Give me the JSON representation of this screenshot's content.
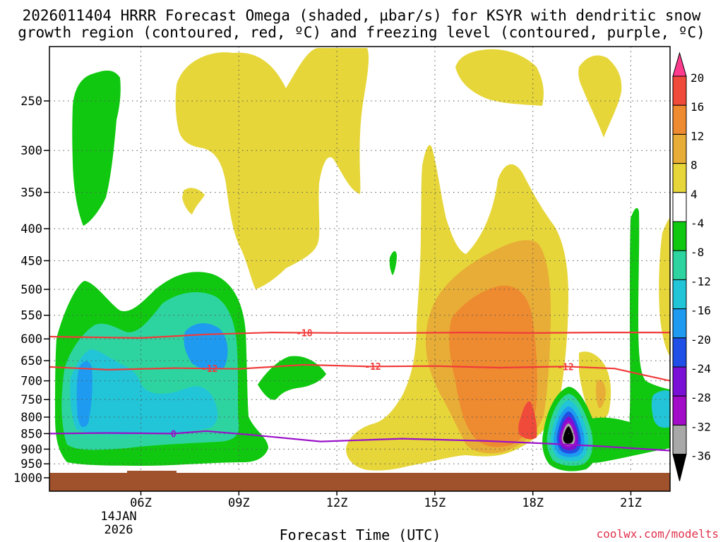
{
  "chart_data": {
    "type": "heatmap",
    "title_line1": "2026011404 HRRR Forecast Omega (shaded, µbar/s) for KSYR with dendritic snow",
    "title_line2": "growth region (contoured, red, ºC) and freezing level (contoured, purple, ºC)",
    "xlabel": "Forecast Time (UTC)",
    "date_label_day": "14JAN",
    "date_label_year": "2026",
    "credit": "coolwx.com/modelts",
    "x_range_hours": [
      3.2,
      22.2
    ],
    "x_ticks": [
      {
        "hour": 6,
        "label": "06Z"
      },
      {
        "hour": 9,
        "label": "09Z"
      },
      {
        "hour": 12,
        "label": "12Z"
      },
      {
        "hour": 15,
        "label": "15Z"
      },
      {
        "hour": 18,
        "label": "18Z"
      },
      {
        "hour": 21,
        "label": "21Z"
      }
    ],
    "y_ticks": [
      {
        "p": 250,
        "label": "250"
      },
      {
        "p": 300,
        "label": "300"
      },
      {
        "p": 350,
        "label": "350"
      },
      {
        "p": 400,
        "label": "400"
      },
      {
        "p": 450,
        "label": "450"
      },
      {
        "p": 500,
        "label": "500"
      },
      {
        "p": 550,
        "label": "550"
      },
      {
        "p": 600,
        "label": "600"
      },
      {
        "p": 650,
        "label": "650"
      },
      {
        "p": 700,
        "label": "700"
      },
      {
        "p": 750,
        "label": "750"
      },
      {
        "p": 800,
        "label": "800"
      },
      {
        "p": 850,
        "label": "850"
      },
      {
        "p": 900,
        "label": "900"
      },
      {
        "p": 950,
        "label": "950"
      },
      {
        "p": 1000,
        "label": "1000"
      }
    ],
    "colorbar": [
      {
        "label": "20",
        "color": "#ff3b8e"
      },
      {
        "label": "16",
        "color": "#f04a3a"
      },
      {
        "label": "12",
        "color": "#ee8a30"
      },
      {
        "label": "8",
        "color": "#e8ad36"
      },
      {
        "label": "4",
        "color": "#e6d63a"
      },
      {
        "label": "-4",
        "color": "#ffffff"
      },
      {
        "label": "-8",
        "color": "#10c810"
      },
      {
        "label": "-12",
        "color": "#2ed4a0"
      },
      {
        "label": "-16",
        "color": "#22c4d8"
      },
      {
        "label": "-20",
        "color": "#1e9bf0"
      },
      {
        "label": "-24",
        "color": "#1f4fe6"
      },
      {
        "label": "-28",
        "color": "#7a10d6"
      },
      {
        "label": "-32",
        "color": "#a20cc8"
      },
      {
        "label": "-36",
        "color": "#a8a8a8"
      }
    ],
    "colorbar_bottom_color": "#000000",
    "contours": [
      {
        "name": "dgz-minus18",
        "label": "-18",
        "color": "#f03a3a",
        "label_hour": 11.0,
        "points": [
          [
            3.2,
            595
          ],
          [
            6.0,
            598
          ],
          [
            8.0,
            590
          ],
          [
            10.0,
            586
          ],
          [
            12.0,
            587
          ],
          [
            14.0,
            587
          ],
          [
            16.0,
            586
          ],
          [
            18.0,
            587
          ],
          [
            20.0,
            586
          ],
          [
            22.2,
            586
          ]
        ]
      },
      {
        "name": "dgz-minus12",
        "label": "-12",
        "color": "#f03a3a",
        "label_hour": 8.1,
        "points": [
          [
            3.2,
            665
          ],
          [
            5.0,
            672
          ],
          [
            7.0,
            668
          ],
          [
            9.0,
            670
          ],
          [
            11.0,
            660
          ],
          [
            13.0,
            664
          ],
          [
            15.0,
            663
          ],
          [
            17.0,
            667
          ],
          [
            19.0,
            664
          ],
          [
            20.5,
            669
          ],
          [
            22.2,
            700
          ]
        ],
        "extra_label_hours": [
          13.1,
          19.0
        ]
      },
      {
        "name": "freezing-0",
        "label": "0",
        "color": "#9a10c8",
        "label_hour": 7.0,
        "points": [
          [
            3.2,
            850
          ],
          [
            5.0,
            848
          ],
          [
            7.0,
            850
          ],
          [
            8.0,
            842
          ],
          [
            9.5,
            855
          ],
          [
            11.5,
            875
          ],
          [
            14.0,
            866
          ],
          [
            16.5,
            873
          ],
          [
            18.5,
            882
          ],
          [
            20.0,
            890
          ],
          [
            22.2,
            905
          ]
        ]
      }
    ],
    "regions": [
      {
        "name": "yellow-upper-left",
        "value": 4,
        "color": "#e6d63a"
      },
      {
        "name": "yellow-upper-right",
        "value": 4,
        "color": "#e6d63a"
      },
      {
        "name": "yellow-mid-right",
        "value": 4,
        "color": "#e6d63a"
      },
      {
        "name": "orange-core",
        "value": 12,
        "color": "#ee8a30"
      },
      {
        "name": "red-max",
        "value": 16,
        "color": "#f04a3a"
      },
      {
        "name": "green-left",
        "value": -8,
        "color": "#10c810"
      },
      {
        "name": "blue-left",
        "value": -16,
        "color": "#22c4d8"
      },
      {
        "name": "min-core",
        "value": -36,
        "color": "#000000"
      }
    ]
  }
}
